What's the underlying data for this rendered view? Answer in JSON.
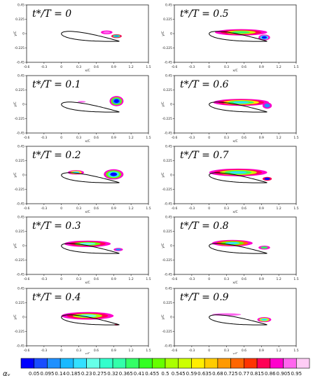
{
  "chart_data": {
    "type": "heatmap",
    "panels": [
      {
        "title": "t*/T = 0",
        "t": 0
      },
      {
        "title": "t*/T = 0.5",
        "t": 0.5
      },
      {
        "title": "t*/T = 0.1",
        "t": 0.1
      },
      {
        "title": "t*/T = 0.6",
        "t": 0.6
      },
      {
        "title": "t*/T = 0.2",
        "t": 0.2
      },
      {
        "title": "t*/T = 0.7",
        "t": 0.7
      },
      {
        "title": "t*/T = 0.3",
        "t": 0.3
      },
      {
        "title": "t*/T = 0.8",
        "t": 0.8
      },
      {
        "title": "t*/T = 0.4",
        "t": 0.4
      },
      {
        "title": "t*/T = 0.9",
        "t": 0.9
      }
    ],
    "xlabel": "x/C",
    "ylabel": "y/C",
    "xlim": [
      -0.6,
      1.5
    ],
    "ylim": [
      -0.45,
      0.45
    ],
    "x_ticks": [
      "-0.6",
      "-0.3",
      "0",
      "0.3",
      "0.6",
      "0.9",
      "1.2",
      "1.5"
    ],
    "y_ticks": [
      "0.45",
      "0.225",
      "0",
      "-0.225",
      "-0.45"
    ],
    "colorbar": {
      "label": "αᵥ",
      "levels": [
        "0.05",
        "0.095",
        "0.14",
        "0.185",
        "0.23",
        "0.275",
        "0.32",
        "0.365",
        "0.41",
        "0.455",
        "0.5",
        "0.545",
        "0.59",
        "0.635",
        "0.68",
        "0.725",
        "0.77",
        "0.815",
        "0.86",
        "0.905",
        "0.95"
      ],
      "colors": [
        "#0000ff",
        "#1a4dff",
        "#1e90ff",
        "#19b9ff",
        "#33e0ff",
        "#66ffe8",
        "#33ffcc",
        "#33ffaa",
        "#33ff66",
        "#33ff22",
        "#66ff00",
        "#aaff00",
        "#ccff00",
        "#ffee00",
        "#ffcc00",
        "#ff9900",
        "#ff6600",
        "#ff3300",
        "#ff0055",
        "#ff00cc",
        "#ff66ee",
        "#ffccf5"
      ]
    }
  }
}
